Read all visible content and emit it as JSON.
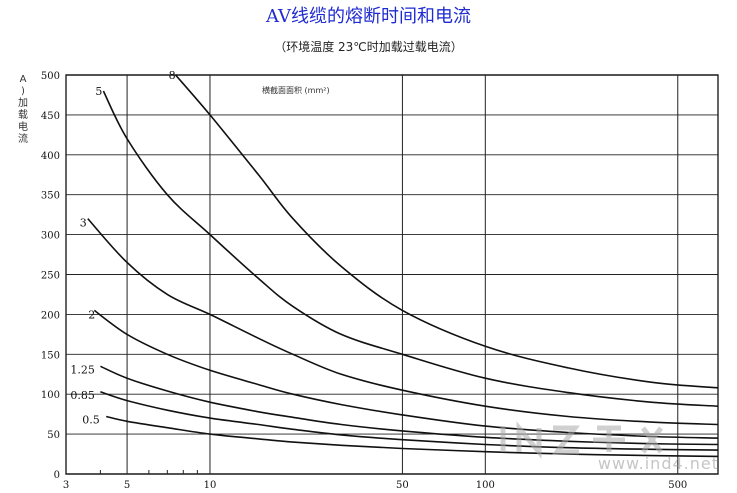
{
  "page": {
    "title": "AV线缆的熔断时间和电流",
    "subtitle": "（环境温度 23℃时加载过载电流）",
    "ylabel": "A)加载电流"
  },
  "colors": {
    "title": "#1f2bd0",
    "curve": "#111111",
    "grid": "#222222"
  },
  "chart_data": {
    "type": "line",
    "title": "AV线缆的熔断时间和电流",
    "subtitle": "（环境温度 23℃时加载过载电流）",
    "xlabel": "",
    "ylabel": "A)加载电流",
    "x_scale": "log",
    "xlim": [
      3,
      700
    ],
    "ylim": [
      0,
      500
    ],
    "x_ticks": [
      3,
      5,
      10,
      50,
      100,
      500
    ],
    "y_ticks": [
      0,
      50,
      100,
      150,
      200,
      250,
      300,
      350,
      400,
      450,
      500
    ],
    "grid": true,
    "annotation": "横截面面积 (mm²)",
    "series": [
      {
        "name": "8",
        "x": [
          7.5,
          10,
          15,
          20,
          30,
          50,
          100,
          200,
          400,
          700
        ],
        "y": [
          500,
          450,
          375,
          320,
          260,
          205,
          160,
          133,
          115,
          108
        ]
      },
      {
        "name": "5",
        "x": [
          4.1,
          5,
          7,
          10,
          15,
          20,
          30,
          50,
          100,
          200,
          400,
          700
        ],
        "y": [
          480,
          420,
          350,
          300,
          245,
          210,
          175,
          150,
          120,
          102,
          90,
          85
        ]
      },
      {
        "name": "3",
        "x": [
          3.6,
          5,
          7,
          10,
          15,
          20,
          30,
          50,
          100,
          200,
          400,
          700
        ],
        "y": [
          320,
          265,
          225,
          200,
          170,
          150,
          125,
          105,
          85,
          72,
          65,
          62
        ]
      },
      {
        "name": "2",
        "x": [
          3.8,
          5,
          7,
          10,
          15,
          20,
          30,
          50,
          100,
          200,
          400,
          700
        ],
        "y": [
          205,
          175,
          150,
          130,
          112,
          100,
          87,
          74,
          60,
          52,
          47,
          45
        ]
      },
      {
        "name": "1.25",
        "x": [
          4,
          5,
          7,
          10,
          15,
          20,
          30,
          50,
          100,
          200,
          400,
          700
        ],
        "y": [
          135,
          120,
          104,
          90,
          78,
          71,
          62,
          54,
          46,
          41,
          38,
          37
        ]
      },
      {
        "name": "0.85",
        "x": [
          4,
          5,
          7,
          10,
          15,
          20,
          30,
          50,
          100,
          200,
          400,
          700
        ],
        "y": [
          103,
          92,
          80,
          70,
          62,
          56,
          49,
          43,
          37,
          33,
          31,
          30
        ]
      },
      {
        "name": "0.5",
        "x": [
          4.2,
          5,
          7,
          10,
          15,
          20,
          30,
          50,
          100,
          200,
          400,
          700
        ],
        "y": [
          72,
          66,
          58,
          50,
          44,
          40,
          36,
          32,
          28,
          25,
          23,
          22
        ]
      }
    ]
  },
  "watermark": {
    "url": "www.ind4.net"
  }
}
